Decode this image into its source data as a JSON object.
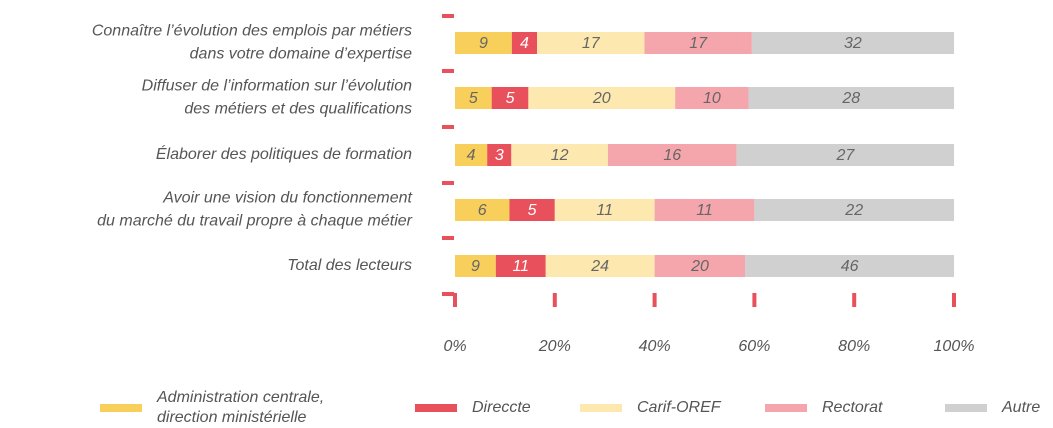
{
  "chart_data": {
    "type": "bar",
    "orientation": "horizontal",
    "stacked": "percent",
    "categories": [
      [
        "Connaître l’évolution des emplois par métiers",
        "dans votre domaine d’expertise"
      ],
      [
        "Diffuser de l’information sur l’évolution",
        "des métiers et des qualifications"
      ],
      [
        "Élaborer des politiques de formation"
      ],
      [
        "Avoir une vision du fonctionnement",
        "du marché du travail propre à chaque métier"
      ],
      [
        "Total des lecteurs"
      ]
    ],
    "series": [
      {
        "name": [
          "Administration centrale,",
          "direction ministérielle"
        ],
        "color": "#f9cf5c",
        "label_color": "#666666",
        "values": [
          9,
          5,
          4,
          6,
          9
        ]
      },
      {
        "name": [
          "Direccte"
        ],
        "color": "#e8505b",
        "label_color": "#ffffff",
        "values": [
          4,
          5,
          3,
          5,
          11
        ]
      },
      {
        "name": [
          "Carif-OREF"
        ],
        "color": "#fde8b0",
        "label_color": "#666666",
        "values": [
          17,
          20,
          12,
          11,
          24
        ]
      },
      {
        "name": [
          "Rectorat"
        ],
        "color": "#f4a6ac",
        "label_color": "#666666",
        "values": [
          17,
          10,
          16,
          11,
          20
        ]
      },
      {
        "name": [
          "Autre"
        ],
        "color": "#d0d0d0",
        "label_color": "#666666",
        "values": [
          32,
          28,
          27,
          22,
          46
        ]
      }
    ],
    "xlim": [
      0,
      100
    ],
    "xticks": [
      {
        "value": 0,
        "label": "0%"
      },
      {
        "value": 20,
        "label": "20%"
      },
      {
        "value": 40,
        "label": "40%"
      },
      {
        "value": 60,
        "label": "60%"
      },
      {
        "value": 80,
        "label": "80%"
      },
      {
        "value": 100,
        "label": "100%"
      }
    ],
    "tick_color": "#e8505b"
  }
}
